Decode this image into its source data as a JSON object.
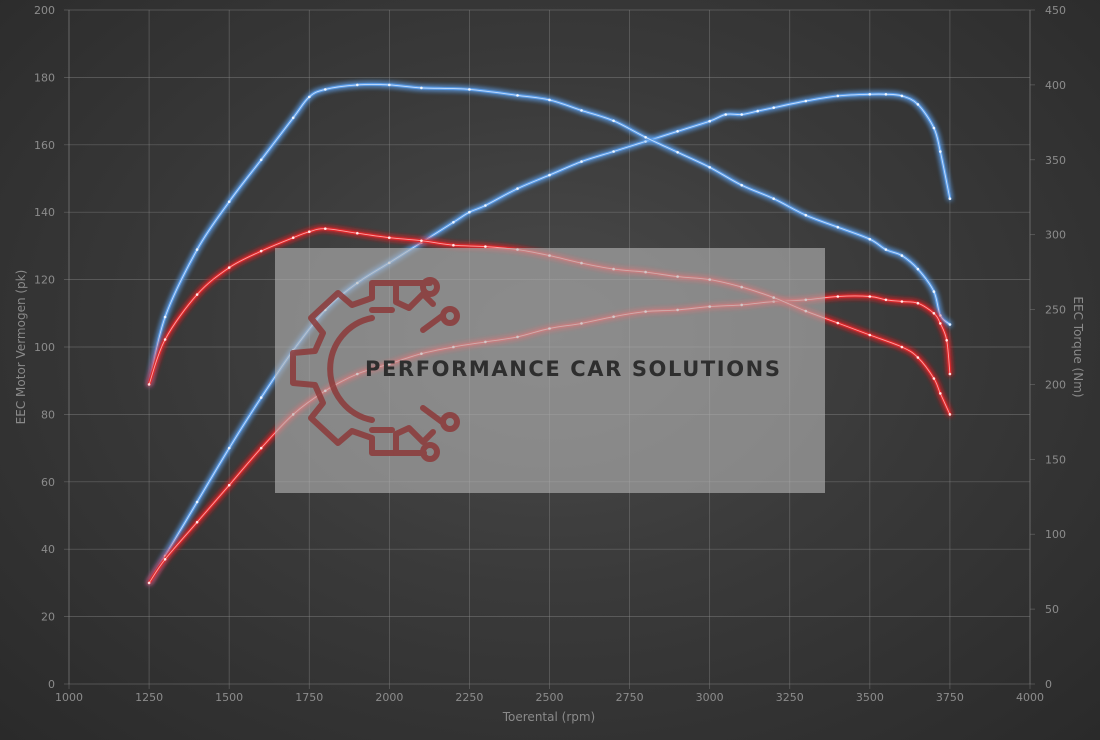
{
  "chart_data": {
    "type": "line",
    "xlabel": "Toerental (rpm)",
    "ylabel_left": "EEC Motor Vermogen (pk)",
    "ylabel_right": "EEC Torque (Nm)",
    "xlim": [
      1000,
      4000
    ],
    "ylim_left": [
      0,
      200
    ],
    "ylim_right": [
      0,
      450
    ],
    "x_ticks": [
      1000,
      1250,
      1500,
      1750,
      2000,
      2250,
      2500,
      2750,
      3000,
      3250,
      3500,
      3750,
      4000
    ],
    "y_left_ticks": [
      0,
      20,
      40,
      60,
      80,
      100,
      120,
      140,
      160,
      180,
      200
    ],
    "y_right_ticks": [
      0,
      50,
      100,
      150,
      200,
      250,
      300,
      350,
      400,
      450
    ],
    "grid": true,
    "series": [
      {
        "key": "tuned_power",
        "axis": "left",
        "color": "#5b9de8",
        "x": [
          1250,
          1300,
          1400,
          1500,
          1600,
          1700,
          1800,
          1900,
          2000,
          2100,
          2200,
          2250,
          2300,
          2400,
          2500,
          2600,
          2700,
          2800,
          2900,
          3000,
          3050,
          3100,
          3150,
          3200,
          3300,
          3400,
          3500,
          3550,
          3600,
          3650,
          3700,
          3720,
          3750
        ],
        "y": [
          30,
          38,
          54,
          70,
          85,
          99,
          111,
          119,
          125,
          131,
          137,
          140,
          142,
          147,
          151,
          155,
          158,
          161,
          164,
          167,
          169,
          169,
          170,
          171,
          173,
          174.5,
          175,
          175,
          174.5,
          172,
          165,
          158,
          144
        ]
      },
      {
        "key": "tuned_torque",
        "axis": "right",
        "color": "#5b9de8",
        "x": [
          1250,
          1300,
          1400,
          1500,
          1600,
          1700,
          1750,
          1800,
          1900,
          2000,
          2100,
          2250,
          2400,
          2500,
          2600,
          2700,
          2800,
          2900,
          3000,
          3100,
          3200,
          3300,
          3400,
          3500,
          3550,
          3600,
          3650,
          3700,
          3720,
          3750
        ],
        "y": [
          200,
          245,
          290,
          322,
          350,
          378,
          392,
          397,
          400,
          400,
          398,
          397,
          393,
          390,
          383,
          376,
          365,
          355,
          345,
          333,
          324,
          313,
          305,
          297,
          290,
          286,
          277,
          262,
          246,
          240
        ]
      },
      {
        "key": "stock_power",
        "axis": "left",
        "color": "#e0262a",
        "x": [
          1250,
          1300,
          1400,
          1500,
          1600,
          1700,
          1800,
          1900,
          2000,
          2100,
          2200,
          2300,
          2400,
          2500,
          2600,
          2700,
          2800,
          2900,
          3000,
          3100,
          3200,
          3300,
          3400,
          3500,
          3550,
          3600,
          3650,
          3700,
          3720,
          3740,
          3750
        ],
        "y": [
          30,
          37,
          48,
          59,
          70,
          80,
          87,
          92,
          95,
          98,
          100,
          101.5,
          103,
          105.5,
          107,
          109,
          110.5,
          111,
          112,
          112.5,
          113.5,
          114,
          115,
          115,
          114,
          113.5,
          113,
          110,
          107,
          102,
          92
        ]
      },
      {
        "key": "stock_torque",
        "axis": "right",
        "color": "#e0262a",
        "x": [
          1250,
          1300,
          1400,
          1500,
          1600,
          1700,
          1750,
          1800,
          1900,
          2000,
          2100,
          2200,
          2300,
          2400,
          2500,
          2600,
          2700,
          2800,
          2900,
          3000,
          3100,
          3200,
          3300,
          3400,
          3500,
          3600,
          3650,
          3700,
          3720,
          3750
        ],
        "y": [
          200,
          230,
          260,
          278,
          289,
          298,
          302,
          304,
          301,
          298,
          296,
          293,
          292,
          290,
          286,
          281,
          277,
          275,
          272,
          270,
          265,
          258,
          249,
          241,
          233,
          225,
          218,
          204,
          194,
          180
        ]
      }
    ]
  },
  "watermark": {
    "text": "PERFORMANCE CAR SOLUTIONS",
    "logo_icon": "gear-circuit-icon",
    "logo_color": "#8c3a3a"
  }
}
